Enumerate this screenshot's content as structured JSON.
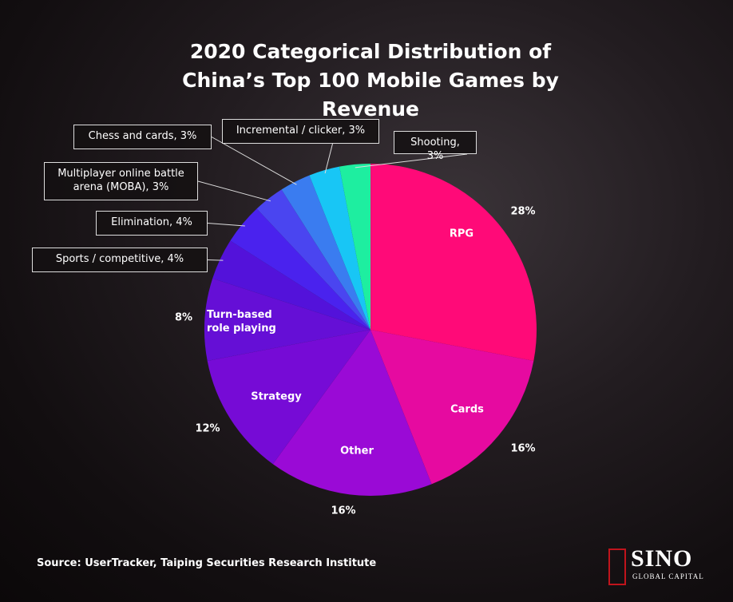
{
  "chart_data": {
    "type": "pie",
    "title": "2020 Categorical Distribution of China’s Top 100 Mobile Games by Revenue",
    "categories": [
      "RPG",
      "Cards",
      "Other",
      "Strategy",
      "Turn-based role playing",
      "Sports / competitive, 4%",
      "Elimination, 4%",
      "Multiplayer online battle arena (MOBA), 3%",
      "Chess and cards, 3%",
      "Incremental / clicker, 3%",
      "Shooting, 3%"
    ],
    "values": [
      28,
      16,
      16,
      12,
      8,
      4,
      4,
      3,
      3,
      3,
      3
    ],
    "value_labels": [
      "28%",
      "16%",
      "16%",
      "12%",
      "8%",
      null,
      null,
      null,
      null,
      null,
      null
    ],
    "colors": [
      "#ff0a78",
      "#e60aa0",
      "#9a0ad6",
      "#760bd6",
      "#650fd6",
      "#5312da",
      "#4a22ee",
      "#4a45f0",
      "#3a7cf0",
      "#18c6f5",
      "#1eeea0"
    ],
    "source": "Source: UserTracker, Taiping Securities Research Institute",
    "logo": "SINO",
    "logo_subtitle": "GLOBAL CAPITAL"
  }
}
